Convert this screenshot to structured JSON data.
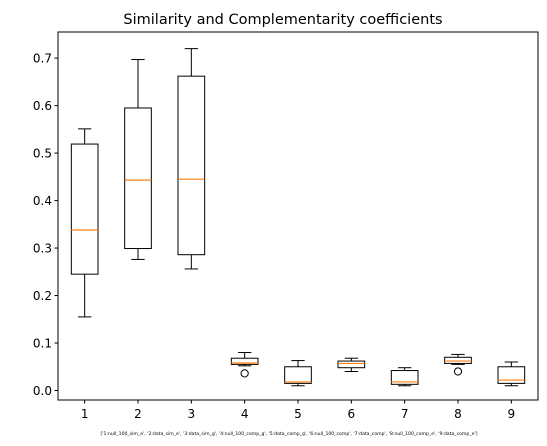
{
  "chart_data": {
    "type": "boxplot",
    "title": "Similarity and Complementarity coefficients",
    "xlabel": "['1:null_100_sim_e', '2:data_sim_e', '3:data_sim_g', '4:null_100_comp_g', '5:data_comp_g', '6:null_100_comp', '7:data_comp', '8:null_100_comp_e', '9:data_comp_e']",
    "ylabel": "",
    "ylim": [
      -0.02,
      0.755
    ],
    "yticks": [
      "0.0",
      "0.1",
      "0.2",
      "0.3",
      "0.4",
      "0.5",
      "0.6",
      "0.7"
    ],
    "grid": false,
    "colors": {
      "box": "#000000",
      "median": "#ff7f0e",
      "background": "#ffffff"
    },
    "categories": [
      "1",
      "2",
      "3",
      "4",
      "5",
      "6",
      "7",
      "8",
      "9"
    ],
    "boxes": [
      {
        "whislo": 0.155,
        "q1": 0.245,
        "med": 0.338,
        "q3": 0.519,
        "whishi": 0.551,
        "fliers": []
      },
      {
        "whislo": 0.276,
        "q1": 0.299,
        "med": 0.443,
        "q3": 0.595,
        "whishi": 0.697,
        "fliers": []
      },
      {
        "whislo": 0.256,
        "q1": 0.286,
        "med": 0.445,
        "q3": 0.662,
        "whishi": 0.72,
        "fliers": []
      },
      {
        "whislo": 0.052,
        "q1": 0.055,
        "med": 0.058,
        "q3": 0.068,
        "whishi": 0.08,
        "fliers": [
          0.036
        ]
      },
      {
        "whislo": 0.01,
        "q1": 0.015,
        "med": 0.018,
        "q3": 0.05,
        "whishi": 0.063,
        "fliers": []
      },
      {
        "whislo": 0.04,
        "q1": 0.048,
        "med": 0.057,
        "q3": 0.062,
        "whishi": 0.068,
        "fliers": []
      },
      {
        "whislo": 0.01,
        "q1": 0.013,
        "med": 0.018,
        "q3": 0.042,
        "whishi": 0.048,
        "fliers": []
      },
      {
        "whislo": 0.055,
        "q1": 0.057,
        "med": 0.062,
        "q3": 0.07,
        "whishi": 0.076,
        "fliers": [
          0.04
        ]
      },
      {
        "whislo": 0.01,
        "q1": 0.015,
        "med": 0.022,
        "q3": 0.05,
        "whishi": 0.06,
        "fliers": []
      }
    ]
  }
}
